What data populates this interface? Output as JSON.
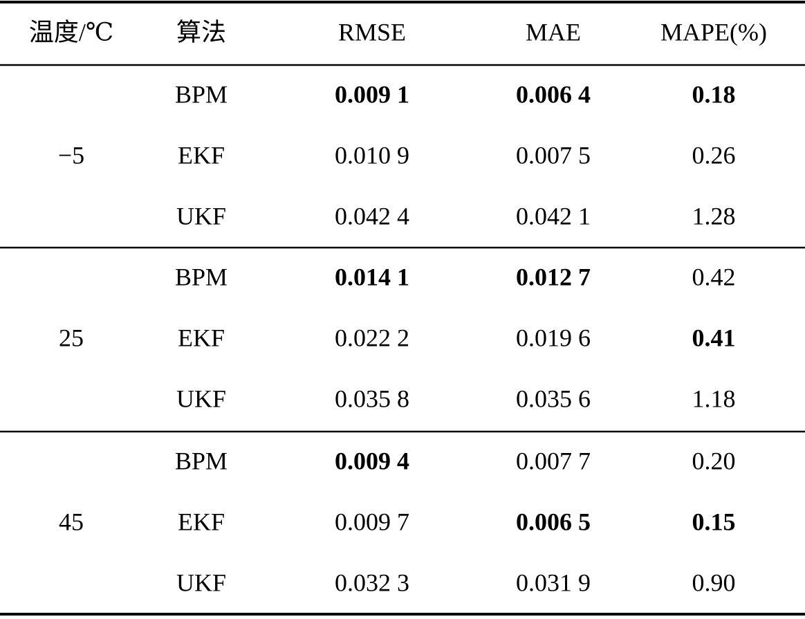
{
  "table": {
    "header": [
      "温度/℃",
      "算法",
      "RMSE",
      "MAE",
      "MAPE(%)"
    ],
    "groups": [
      {
        "temperature": "−5",
        "rows": [
          [
            "BPM",
            "0.009 1",
            "0.006 4",
            "0.18"
          ],
          [
            "EKF",
            "0.010 9",
            "0.007 5",
            "0.26"
          ],
          [
            "UKF",
            "0.042 4",
            "0.042 1",
            "1.28"
          ]
        ]
      },
      {
        "temperature": "25",
        "rows": [
          [
            "BPM",
            "0.014 1",
            "0.012 7",
            "0.42"
          ],
          [
            "EKF",
            "0.022 2",
            "0.019 6",
            "0.41"
          ],
          [
            "UKF",
            "0.035 8",
            "0.035 6",
            "1.18"
          ]
        ]
      },
      {
        "temperature": "45",
        "rows": [
          [
            "BPM",
            "0.009 4",
            "0.007 7",
            "0.20"
          ],
          [
            "EKF",
            "0.009 7",
            "0.006 5",
            "0.15"
          ],
          [
            "UKF",
            "0.032 3",
            "0.031 9",
            "0.90"
          ]
        ]
      }
    ]
  }
}
